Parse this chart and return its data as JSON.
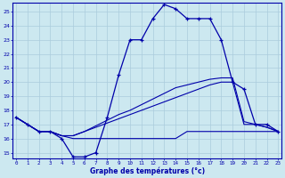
{
  "title": "Graphe des températures (°c)",
  "background_color": "#cce8f0",
  "grid_color": "#aaccdd",
  "line_color": "#0000aa",
  "x_ticks": [
    0,
    1,
    2,
    3,
    4,
    5,
    6,
    7,
    8,
    9,
    10,
    11,
    12,
    13,
    14,
    15,
    16,
    17,
    18,
    19,
    20,
    21,
    22,
    23
  ],
  "y_ticks": [
    15,
    16,
    17,
    18,
    19,
    20,
    21,
    22,
    23,
    24,
    25
  ],
  "xlim": [
    -0.3,
    23.3
  ],
  "ylim": [
    14.6,
    25.6
  ],
  "series_flat": [
    17.5,
    17.0,
    16.5,
    16.5,
    16.2,
    16.0,
    16.0,
    16.0,
    16.0,
    16.0,
    16.0,
    16.0,
    16.0,
    16.0,
    16.0,
    16.5,
    16.5,
    16.5,
    16.5,
    16.5,
    16.5,
    16.5,
    16.5,
    16.5
  ],
  "series_linear1": [
    17.5,
    17.0,
    16.5,
    16.5,
    16.2,
    16.2,
    16.5,
    16.8,
    17.1,
    17.4,
    17.7,
    18.0,
    18.3,
    18.6,
    18.9,
    19.2,
    19.5,
    19.8,
    20.0,
    20.0,
    17.0,
    17.0,
    16.8,
    16.5
  ],
  "series_linear2": [
    17.5,
    17.0,
    16.5,
    16.5,
    16.2,
    16.2,
    16.5,
    16.9,
    17.3,
    17.7,
    18.0,
    18.4,
    18.8,
    19.2,
    19.6,
    19.8,
    20.0,
    20.2,
    20.3,
    20.3,
    17.2,
    17.0,
    16.8,
    16.5
  ],
  "series_temp": [
    17.5,
    17.0,
    16.5,
    16.5,
    16.0,
    14.7,
    14.7,
    15.0,
    17.5,
    20.5,
    23.0,
    23.0,
    24.5,
    25.5,
    25.2,
    24.5,
    24.5,
    24.5,
    23.0,
    20.0,
    19.5,
    17.0,
    17.0,
    16.5
  ]
}
